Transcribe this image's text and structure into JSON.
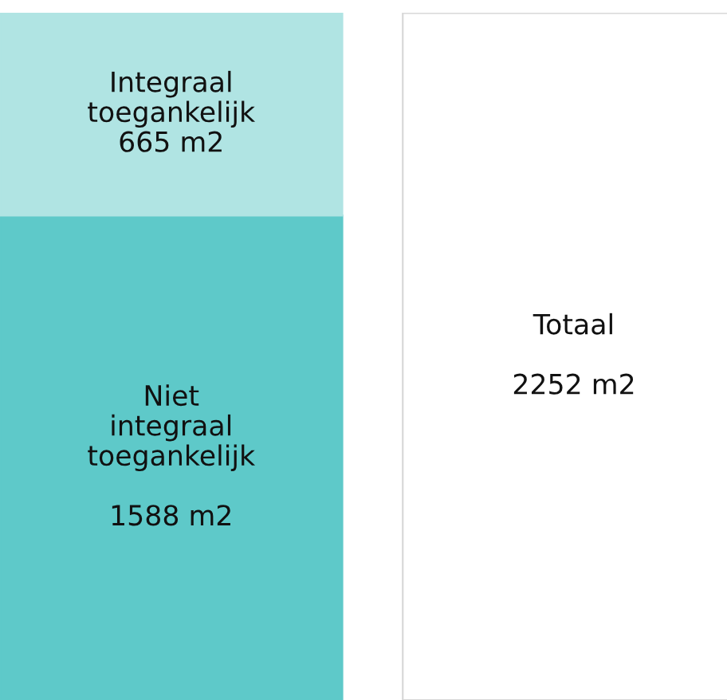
{
  "chart_data": {
    "type": "bar",
    "stacked": true,
    "categories": [
      null,
      null
    ],
    "series": [
      {
        "color": "#5ec9c9",
        "values": [
          1588,
          null
        ],
        "value_labels": [
          "Niet\nintegraal\ntoegankelijk\n\n1588 m2",
          null
        ]
      },
      {
        "color": "#b0e4e3",
        "values": [
          665,
          null
        ],
        "value_labels": [
          "Integraal\ntoegankelijk\n665 m2",
          null
        ]
      },
      {
        "color": "#ffffff",
        "values": [
          null,
          2252
        ],
        "value_labels": [
          null,
          "Totaal\n\n2252 m2"
        ]
      }
    ]
  }
}
